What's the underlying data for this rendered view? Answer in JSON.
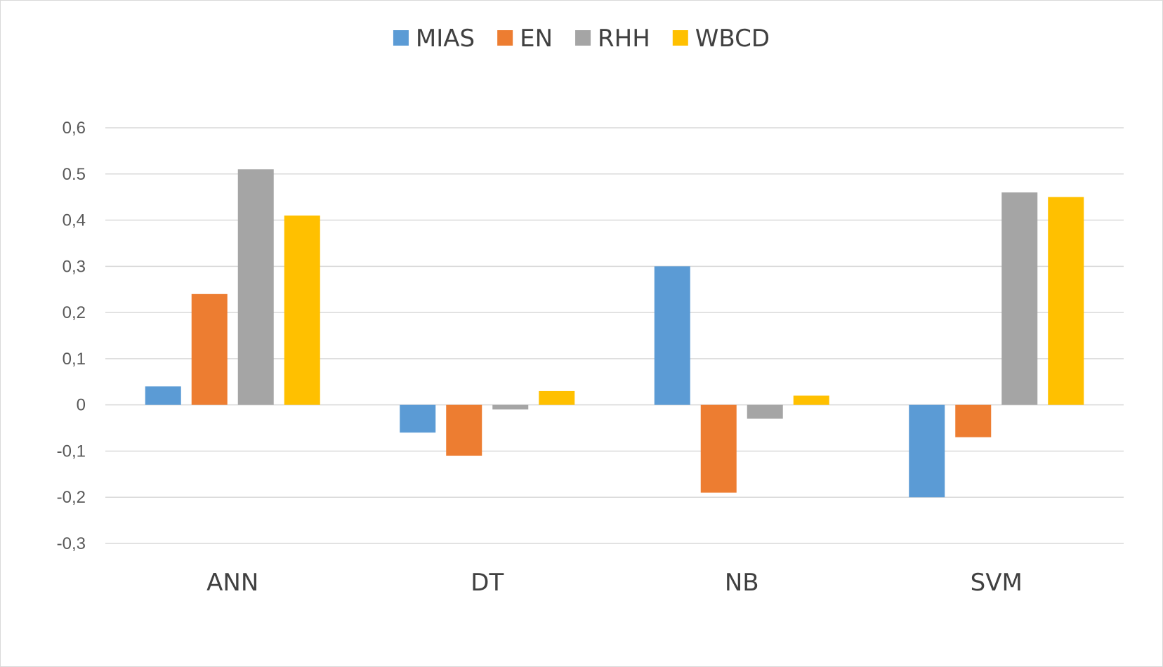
{
  "chart_data": {
    "type": "bar",
    "title": "",
    "xlabel": "",
    "ylabel": "",
    "categories": [
      "ANN",
      "DT",
      "NB",
      "SVM"
    ],
    "series": [
      {
        "name": "MIAS",
        "color": "#5b9bd5",
        "values": [
          0.04,
          -0.06,
          0.3,
          -0.2
        ]
      },
      {
        "name": "EN",
        "color": "#ed7d31",
        "values": [
          0.24,
          -0.11,
          -0.19,
          -0.07
        ]
      },
      {
        "name": "RHH",
        "color": "#a5a5a5",
        "values": [
          0.51,
          -0.01,
          -0.03,
          0.46
        ]
      },
      {
        "name": "WBCD",
        "color": "#ffc000",
        "values": [
          0.41,
          0.03,
          0.02,
          0.45
        ]
      }
    ],
    "ylim": [
      -0.3,
      0.6
    ],
    "yticks": [
      0.6,
      0.5,
      0.4,
      0.3,
      0.2,
      0.1,
      0,
      -0.1,
      -0.2,
      -0.3
    ],
    "ytick_labels": [
      "0,6",
      "0.5",
      "0,4",
      "0,3",
      "0,2",
      "0,1",
      "0",
      "-0,1",
      "-0,2",
      "-0,3"
    ],
    "grid": true,
    "legend_position": "top-center",
    "colors": {
      "grid": "#d9d9d9",
      "text": "#595959"
    }
  }
}
